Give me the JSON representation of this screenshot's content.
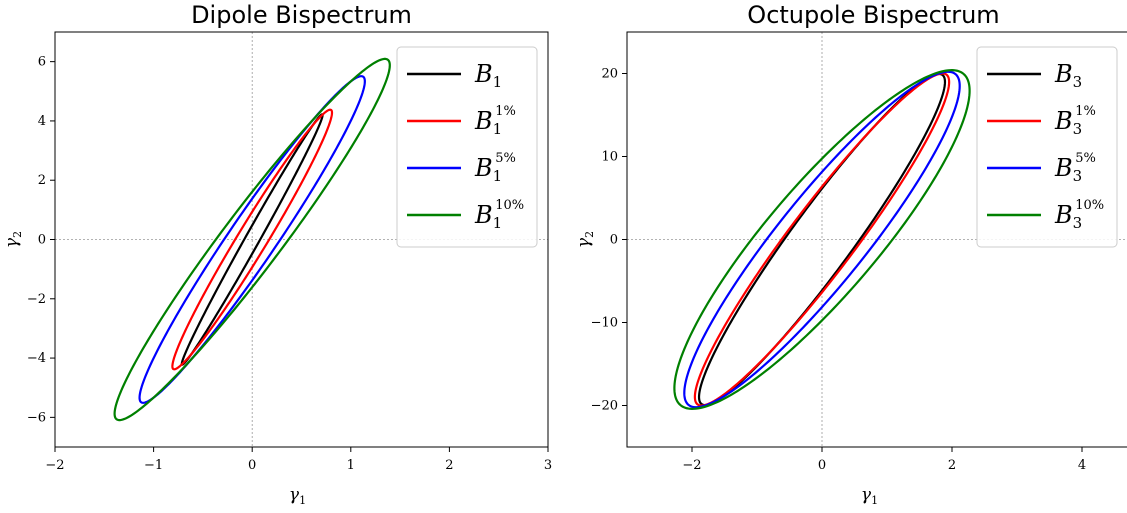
{
  "chart_data": [
    {
      "type": "line",
      "title": "Dipole Bispectrum",
      "xlabel": "γ1",
      "ylabel": "γ2",
      "xlim": [
        -2,
        3
      ],
      "ylim": [
        -7,
        7
      ],
      "xticks": [
        -2,
        -1,
        0,
        1,
        2,
        3
      ],
      "yticks": [
        -6,
        -4,
        -2,
        0,
        2,
        4,
        6
      ],
      "reference_lines": {
        "x": 0,
        "y": 0,
        "style": "dotted gray"
      },
      "legend_position": "top-right",
      "series": [
        {
          "name": "B_1",
          "base": "B",
          "sub": "1",
          "sup": "",
          "color": "#000000",
          "ellipse": {
            "angle_deg": 80.46,
            "semi_major": 4.28,
            "semi_minor": 0.08
          }
        },
        {
          "name": "B_1^{1%}",
          "base": "B",
          "sub": "1",
          "sup": "1%",
          "color": "#ff0000",
          "ellipse": {
            "angle_deg": 79.75,
            "semi_major": 4.45,
            "semi_minor": 0.17
          }
        },
        {
          "name": "B_1^{5%}",
          "base": "B",
          "sub": "1",
          "sup": "5%",
          "color": "#0000ff",
          "ellipse": {
            "angle_deg": 78.62,
            "semi_major": 5.62,
            "semi_minor": 0.28
          }
        },
        {
          "name": "B_1^{10%}",
          "base": "B",
          "sub": "1",
          "sup": "10%",
          "color": "#008000",
          "ellipse": {
            "angle_deg": 77.5,
            "semi_major": 6.24,
            "semi_minor": 0.36
          }
        }
      ]
    },
    {
      "type": "line",
      "title": "Octupole Bispectrum",
      "xlabel": "γ1",
      "ylabel": "γ2",
      "xlim": [
        -3,
        5
      ],
      "ylim": [
        -25,
        25
      ],
      "xticks": [
        -2,
        0,
        2,
        4
      ],
      "yticks": [
        -20,
        -10,
        0,
        10,
        20
      ],
      "reference_lines": {
        "x": 0,
        "y": 0,
        "style": "dotted gray"
      },
      "legend_position": "top-right",
      "series": [
        {
          "name": "B_3",
          "base": "B",
          "sub": "3",
          "sup": "",
          "color": "#000000",
          "ellipse": {
            "angle_deg": 84.84,
            "semi_major": 20.03,
            "semi_minor": 0.58
          }
        },
        {
          "name": "B_3^{1%}",
          "base": "B",
          "sub": "3",
          "sup": "1%",
          "color": "#ff0000",
          "ellipse": {
            "angle_deg": 84.7,
            "semi_major": 20.09,
            "semi_minor": 0.62
          }
        },
        {
          "name": "B_3^{5%}",
          "base": "B",
          "sub": "3",
          "sup": "5%",
          "color": "#0000ff",
          "ellipse": {
            "angle_deg": 84.51,
            "semi_major": 20.3,
            "semi_minor": 0.85
          }
        },
        {
          "name": "B_3^{10%}",
          "base": "B",
          "sub": "3",
          "sup": "10%",
          "color": "#008000",
          "ellipse": {
            "angle_deg": 84.4,
            "semi_major": 20.5,
            "semi_minor": 1.08
          }
        }
      ]
    }
  ]
}
